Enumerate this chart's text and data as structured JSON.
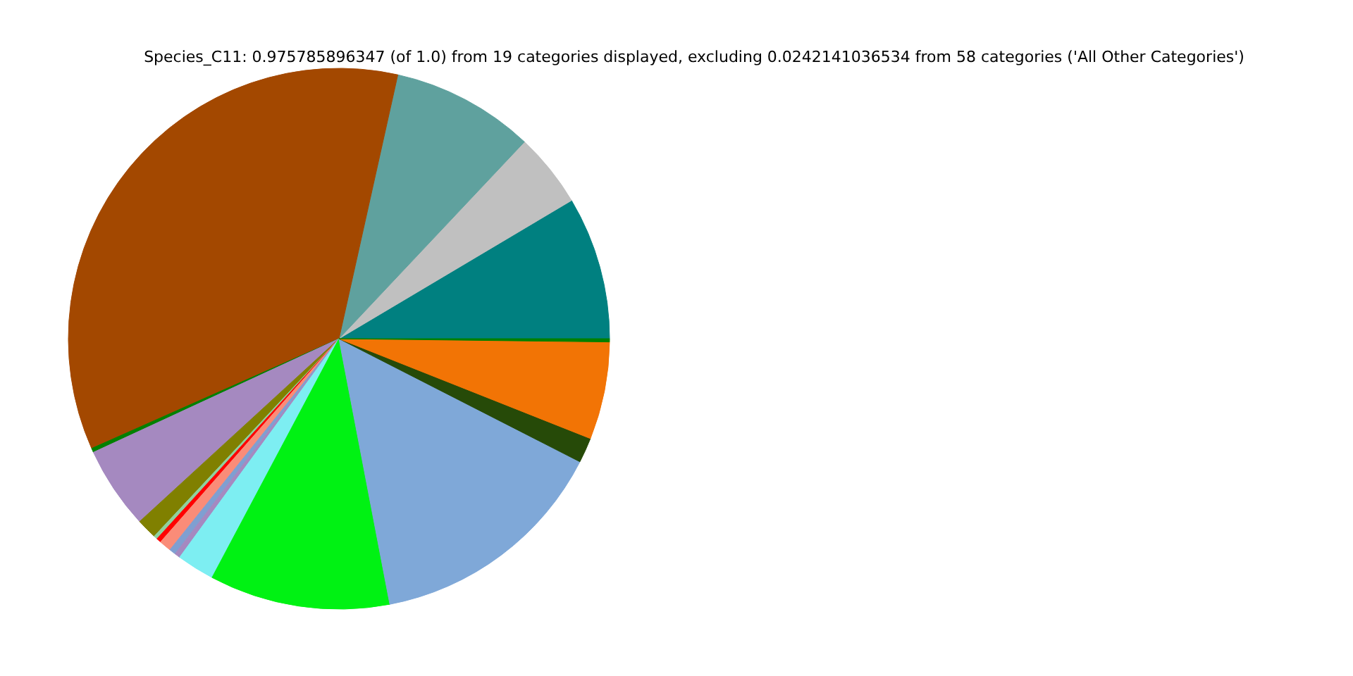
{
  "chart_data": {
    "type": "pie",
    "title": "Species_C11: 0.975785896347 (of 1.0) from 19 categories displayed, excluding 0.0242141036534 from 58 categories ('All Other Categories')",
    "categories": [
      null,
      null,
      null,
      null,
      null,
      null,
      null,
      null,
      null,
      null,
      null,
      null,
      null,
      null,
      null,
      null,
      null,
      null
    ],
    "values": [
      8.54,
      4.44,
      8.53,
      35.14,
      0.25,
      4.92,
      1.22,
      0.22,
      0.28,
      0.72,
      0.39,
      0.33,
      2.25,
      10.78,
      14.47,
      1.5,
      5.83,
      0.19
    ],
    "colors": [
      "#008080",
      "#c0c0c0",
      "#5fa19e",
      "#a34800",
      "#008000",
      "#a589c0",
      "#808000",
      "#8fd19e",
      "#ff0000",
      "#fa8c78",
      "#7f9fd1",
      "#a589c0",
      "#7deef2",
      "#00f213",
      "#7fa8d8",
      "#264a08",
      "#f27405",
      "#008000"
    ]
  }
}
